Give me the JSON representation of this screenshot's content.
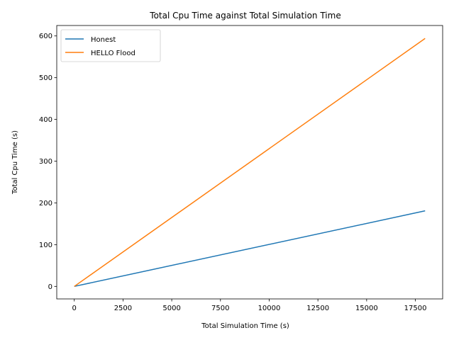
{
  "chart_data": {
    "type": "line",
    "title": "Total Cpu Time against Total Simulation Time",
    "xlabel": "Total Simulation Time (s)",
    "ylabel": "Total Cpu Time (s)",
    "xlim": [
      -900,
      18900
    ],
    "ylim": [
      -30,
      625
    ],
    "xticks": [
      0,
      2500,
      5000,
      7500,
      10000,
      12500,
      15000,
      17500
    ],
    "yticks": [
      0,
      100,
      200,
      300,
      400,
      500,
      600
    ],
    "legend_position": "top-left",
    "grid": false,
    "series": [
      {
        "name": "Honest",
        "color": "#1f77b4",
        "x": [
          0,
          18000
        ],
        "y": [
          0,
          181
        ]
      },
      {
        "name": "HELLO Flood",
        "color": "#ff7f0e",
        "x": [
          0,
          18000
        ],
        "y": [
          0,
          594
        ]
      }
    ]
  }
}
